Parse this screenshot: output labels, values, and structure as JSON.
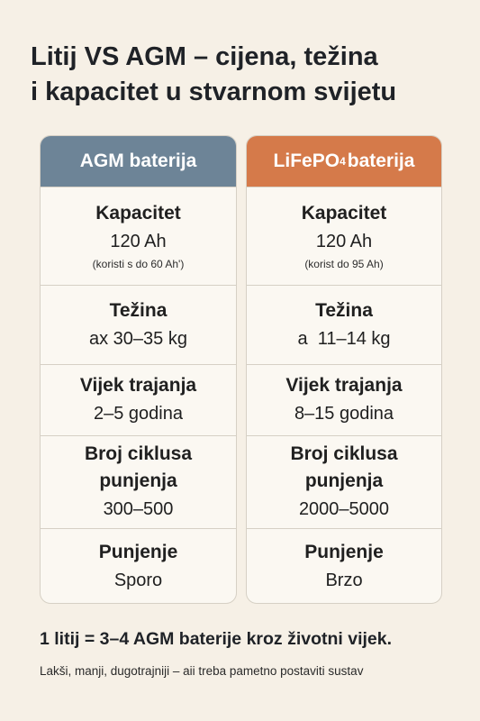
{
  "title": {
    "line1": "Litij VS AGM – cijena, težina",
    "line2": "i kapacitet u stvarnom svijetu"
  },
  "columns": {
    "agm": {
      "header": "AGM baterija",
      "color": "#6d8497",
      "capacity": {
        "label": "Kapacitet",
        "value": "120 Ah",
        "note": "(koristi s do 60 Ah')"
      },
      "weight": {
        "label": "Težina",
        "value": "ax 30–35 kg"
      },
      "lifespan": {
        "label": "Vijek trajanja",
        "value": "2–5 godina"
      },
      "cycles": {
        "label1": "Broj ciklusa",
        "label2": "punjenja",
        "value": "300–500"
      },
      "charging": {
        "label": "Punjenje",
        "value": "Sporo"
      }
    },
    "lifepo4": {
      "header_main": "LiFePO",
      "header_sub": "4",
      "header_rest": "baterija",
      "color": "#d57a4a",
      "capacity": {
        "label": "Kapacitet",
        "value": "120 Ah",
        "note": "(korist do 95 Ah)"
      },
      "weight": {
        "label": "Težina",
        "value": "a  11–14 kg"
      },
      "lifespan": {
        "label": "Vijek trajanja",
        "value": "8–15 godina"
      },
      "cycles": {
        "label1": "Broj ciklusa",
        "label2": "punjenja",
        "value": "2000–5000"
      },
      "charging": {
        "label": "Punjenje",
        "value": "Brzo"
      }
    }
  },
  "footer": {
    "headline": "1 litij = 3–4 AGM baterije kroz životni vijek.",
    "subline": "Lakši, manji, dugotrajniji – aii treba pametno postaviti sustav"
  }
}
